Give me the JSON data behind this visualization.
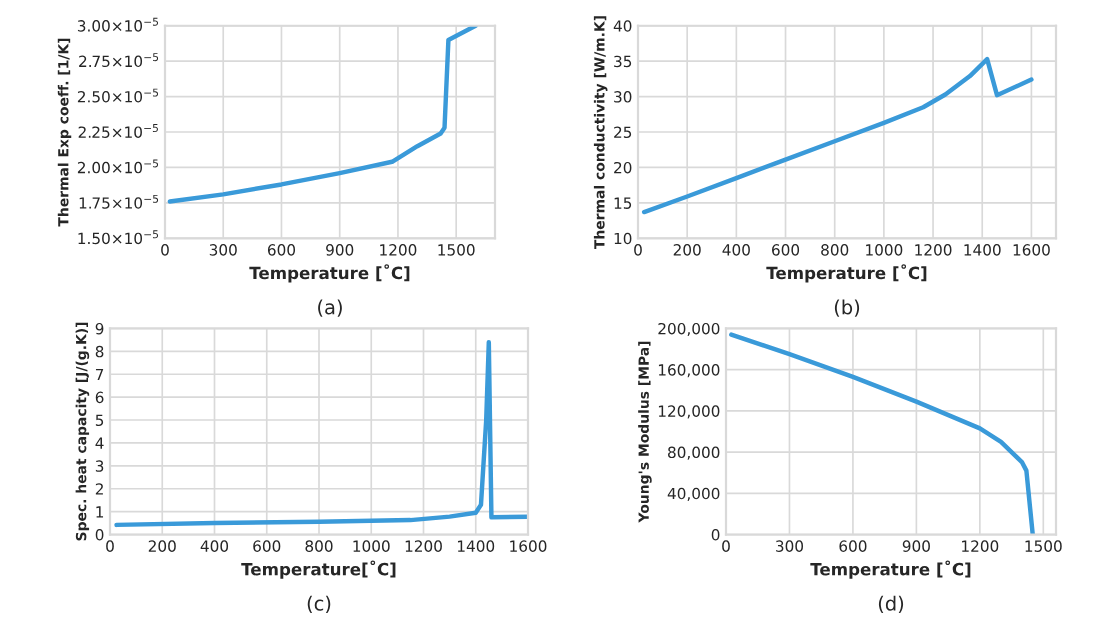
{
  "chart_data": [
    {
      "type": "line",
      "xlabel": "Temperature [˚C]",
      "ylabel": "Thermal Exp coeff. [1/K]",
      "annotations": [
        "(a)"
      ],
      "grid": true,
      "legend": false,
      "marker": "none",
      "line_style": "solid",
      "x": [
        25,
        300,
        600,
        900,
        1170,
        1300,
        1420,
        1440,
        1460,
        1600
      ],
      "series": [
        {
          "color": "#3a9ad9",
          "values": [
            1.76e-05,
            1.81e-05,
            1.88e-05,
            1.96e-05,
            2.04e-05,
            2.15e-05,
            2.24e-05,
            2.28e-05,
            2.9e-05,
            3e-05
          ]
        }
      ],
      "xlim": [
        0,
        1700
      ],
      "xticks": [
        0,
        300,
        600,
        900,
        1200,
        1500
      ],
      "ylim": [
        1.5e-05,
        3e-05
      ],
      "yticks": [
        {
          "value": 1.5e-05,
          "label": "1.50×10$^{−5}$"
        },
        {
          "value": 1.75e-05,
          "label": "1.75×10$^{−5}$"
        },
        {
          "value": 2e-05,
          "label": "2.00×10$^{−5}$"
        },
        {
          "value": 2.25e-05,
          "label": "2.25×10$^{−5}$"
        },
        {
          "value": 2.5e-05,
          "label": "2.50×10$^{−5}$"
        },
        {
          "value": 2.75e-05,
          "label": "2.75×10$^{−5}$"
        },
        {
          "value": 3e-05,
          "label": "3.00×10$^{−5}$"
        }
      ]
    },
    {
      "type": "line",
      "xlabel": "Temperature [˚C]",
      "ylabel": "Thermal conductivity [W/m.K]",
      "annotations": [
        "(b)"
      ],
      "grid": true,
      "legend": false,
      "marker": "none",
      "line_style": "solid",
      "x": [
        25,
        200,
        400,
        600,
        800,
        1000,
        1160,
        1250,
        1350,
        1420,
        1460,
        1600
      ],
      "series": [
        {
          "color": "#3a9ad9",
          "values": [
            13.7,
            15.9,
            18.5,
            21.1,
            23.7,
            26.3,
            28.5,
            30.3,
            32.9,
            35.3,
            30.2,
            32.4
          ]
        }
      ],
      "xlim": [
        0,
        1700
      ],
      "xticks": [
        0,
        200,
        400,
        600,
        800,
        1000,
        1200,
        1400,
        1600
      ],
      "ylim": [
        10,
        40
      ],
      "yticks": [
        10,
        15,
        20,
        25,
        30,
        35,
        40
      ]
    },
    {
      "type": "line",
      "xlabel": "Temperature[˚C]",
      "ylabel": "Spec. heat capacity [J/(g.K)]",
      "annotations": [
        "(c)"
      ],
      "grid": true,
      "legend": false,
      "marker": "none",
      "line_style": "solid",
      "x": [
        25,
        400,
        800,
        1150,
        1300,
        1400,
        1420,
        1440,
        1450,
        1460,
        1600
      ],
      "series": [
        {
          "color": "#3a9ad9",
          "values": [
            0.42,
            0.5,
            0.56,
            0.63,
            0.78,
            0.95,
            1.3,
            5,
            8.4,
            0.75,
            0.78
          ]
        }
      ],
      "xlim": [
        0,
        1600
      ],
      "xticks": [
        0,
        200,
        400,
        600,
        800,
        1000,
        1200,
        1400,
        1600
      ],
      "ylim": [
        0,
        9
      ],
      "yticks": [
        0,
        1,
        2,
        3,
        4,
        5,
        6,
        7,
        8,
        9
      ]
    },
    {
      "type": "line",
      "xlabel": "Temperature [˚C]",
      "ylabel": "Young's Modulus [MPa]",
      "annotations": [
        "(d)"
      ],
      "grid": true,
      "legend": false,
      "marker": "none",
      "line_style": "solid",
      "x": [
        25,
        300,
        600,
        900,
        1200,
        1300,
        1400,
        1420,
        1450
      ],
      "series": [
        {
          "color": "#3a9ad9",
          "values": [
            194000,
            175000,
            153000,
            129000,
            103000,
            90000,
            70000,
            62000,
            0
          ]
        }
      ],
      "xlim": [
        0,
        1560
      ],
      "xticks": [
        0,
        300,
        600,
        900,
        1200,
        1500
      ],
      "ylim": [
        0,
        200000
      ],
      "yticks": [
        {
          "value": 0,
          "label": "0"
        },
        {
          "value": 40000,
          "label": "40,000"
        },
        {
          "value": 80000,
          "label": "80,000"
        },
        {
          "value": 120000,
          "label": "120,000"
        },
        {
          "value": 160000,
          "label": "160,000"
        },
        {
          "value": 200000,
          "label": "200,000"
        }
      ]
    }
  ]
}
